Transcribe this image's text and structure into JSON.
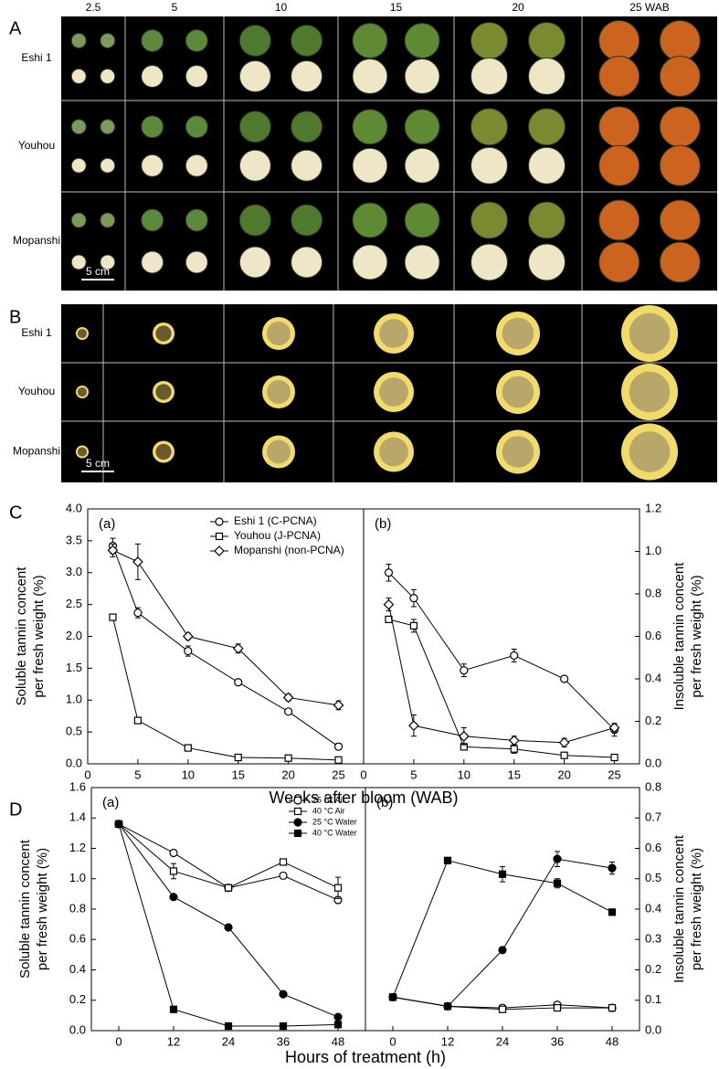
{
  "panel_labels": [
    "A",
    "B",
    "C",
    "D"
  ],
  "photos": {
    "columns": [
      "2.5",
      "5",
      "10",
      "15",
      "20",
      "25 WAB"
    ],
    "rows": [
      "Eshi 1",
      "Youhou",
      "Mopanshi"
    ],
    "scale_bar": "5 cm"
  },
  "chart_data": [
    {
      "type": "line",
      "label": "(a)",
      "xlabel": "Weeks after bloom (WAB)",
      "ylabel": [
        "Soluble tannin concent",
        "per fresh weight (%)"
      ],
      "y_axis": "left",
      "legend": "upper right",
      "x": [
        2.5,
        5,
        10,
        15,
        20,
        25
      ],
      "xlim": [
        0,
        27.5
      ],
      "xticks": [
        0,
        5,
        10,
        15,
        20,
        25
      ],
      "ylim": [
        0,
        4
      ],
      "yticks": [
        {
          "value": 0,
          "label": "0.0"
        },
        0.5,
        {
          "value": 1,
          "label": "1.0"
        },
        1.5,
        {
          "value": 2,
          "label": "2.0"
        },
        2.5,
        {
          "value": 3,
          "label": "3.0"
        },
        3.5,
        {
          "value": 4,
          "label": "4.0"
        }
      ],
      "series": [
        {
          "name": "Eshi 1 (C-PCNA)",
          "marker": "circle",
          "filled": false,
          "color": "#000000",
          "values": [
            3.42,
            2.37,
            1.77,
            1.28,
            0.82,
            0.27
          ],
          "errors": [
            0.12,
            0.08,
            0.08,
            0.03,
            0.03,
            0.05
          ]
        },
        {
          "name": "Youhou (J-PCNA)",
          "marker": "square",
          "filled": false,
          "color": "#000000",
          "values": [
            2.3,
            0.68,
            0.25,
            0.1,
            0.09,
            0.06
          ],
          "errors": [
            0.03,
            0.03,
            0.03,
            0.03,
            0.02,
            0.02
          ]
        },
        {
          "name": "Mopanshi (non-PCNA)",
          "marker": "diamond",
          "filled": false,
          "color": "#000000",
          "values": [
            3.35,
            3.17,
            2.0,
            1.81,
            1.04,
            0.92
          ],
          "errors": [
            0.1,
            0.28,
            0.05,
            0.07,
            0.05,
            0.07
          ]
        }
      ]
    },
    {
      "type": "line",
      "label": "(b)",
      "ylabel": [
        "Insoluble tannin concent",
        "per fresh weight (%)"
      ],
      "y_axis": "right",
      "x": [
        2.5,
        5,
        10,
        15,
        20,
        25
      ],
      "xlim": [
        0,
        27.5
      ],
      "xticks": [
        0,
        5,
        10,
        15,
        20,
        25
      ],
      "ylim": [
        0,
        1.2
      ],
      "yticks": [
        {
          "value": 0,
          "label": "0.0"
        },
        0.2,
        0.4,
        0.6,
        0.8,
        {
          "value": 1,
          "label": "1.0"
        },
        1.2
      ],
      "series": [
        {
          "marker": "circle",
          "filled": false,
          "color": "#000000",
          "values": [
            0.9,
            0.78,
            0.44,
            0.51,
            0.4,
            0.16
          ],
          "errors": [
            0.04,
            0.04,
            0.03,
            0.03,
            0.01,
            0.03
          ]
        },
        {
          "marker": "square",
          "filled": false,
          "color": "#000000",
          "values": [
            0.68,
            0.65,
            0.08,
            0.07,
            0.04,
            0.03
          ],
          "errors": [
            0.01,
            0.03,
            0.01,
            0.02,
            0.01,
            0.01
          ]
        },
        {
          "marker": "diamond",
          "filled": false,
          "color": "#000000",
          "values": [
            0.75,
            0.18,
            0.13,
            0.11,
            0.1,
            0.17
          ],
          "errors": [
            0.03,
            0.05,
            0.04,
            0.02,
            0.02,
            0.02
          ]
        }
      ]
    },
    {
      "type": "line",
      "label": "(a)",
      "xlabel": "Hours of treatment (h)",
      "ylabel": [
        "Soluble tannin concent",
        "per fresh weight (%)"
      ],
      "y_axis": "left",
      "legend": "upper right",
      "x": [
        0,
        12,
        24,
        36,
        48
      ],
      "xlim": [
        -6,
        54
      ],
      "xticks": [
        0,
        12,
        24,
        36,
        48
      ],
      "ylim": [
        0,
        1.6
      ],
      "yticks": [
        {
          "value": 0,
          "label": "0.0"
        },
        0.2,
        0.4,
        0.6,
        0.8,
        {
          "value": 1,
          "label": "1.0"
        },
        1.2,
        1.4,
        1.6
      ],
      "series": [
        {
          "name": "25 °C Air",
          "marker": "circle",
          "filled": false,
          "color": "#000000",
          "values": [
            1.36,
            1.17,
            0.94,
            1.02,
            0.86
          ],
          "errors": [
            0.01,
            0.01,
            0.01,
            0.02,
            0.02
          ]
        },
        {
          "name": "40 °C Air",
          "marker": "square",
          "filled": false,
          "color": "#000000",
          "values": [
            1.36,
            1.05,
            0.94,
            1.11,
            0.94
          ],
          "errors": [
            0.01,
            0.05,
            0.02,
            0.01,
            0.07
          ]
        },
        {
          "name": "25 °C Water",
          "marker": "circle",
          "filled": true,
          "color": "#000000",
          "values": [
            1.36,
            0.88,
            0.68,
            0.24,
            0.09
          ],
          "errors": [
            0.01,
            0.01,
            0.01,
            0.01,
            0.01
          ]
        },
        {
          "name": "40 °C Water",
          "marker": "square",
          "filled": true,
          "color": "#000000",
          "values": [
            1.36,
            0.14,
            0.03,
            0.03,
            0.04
          ],
          "errors": [
            0.01,
            0.01,
            0.01,
            0.01,
            0.01
          ]
        }
      ]
    },
    {
      "type": "line",
      "label": "(b)",
      "ylabel": [
        "Insoluble tannin concent",
        "per fresh weight (%)"
      ],
      "y_axis": "right",
      "x": [
        0,
        12,
        24,
        36,
        48
      ],
      "xlim": [
        -6,
        54
      ],
      "xticks": [
        0,
        12,
        24,
        36,
        48
      ],
      "ylim": [
        0,
        0.8
      ],
      "yticks": [
        {
          "value": 0,
          "label": "0.0"
        },
        0.1,
        0.2,
        0.3,
        0.4,
        0.5,
        0.6,
        0.7,
        0.8
      ],
      "series": [
        {
          "marker": "circle",
          "filled": false,
          "color": "#000000",
          "values": [
            0.11,
            0.08,
            0.075,
            0.085,
            0.075
          ],
          "errors": [
            0.005,
            0.005,
            0.005,
            0.005,
            0.005
          ]
        },
        {
          "marker": "square",
          "filled": false,
          "color": "#000000",
          "values": [
            0.11,
            0.08,
            0.07,
            0.075,
            0.075
          ],
          "errors": [
            0.005,
            0.005,
            0.005,
            0.005,
            0.005
          ]
        },
        {
          "marker": "circle",
          "filled": true,
          "color": "#000000",
          "values": [
            0.11,
            0.08,
            0.265,
            0.565,
            0.535
          ],
          "errors": [
            0.005,
            0.005,
            0.005,
            0.025,
            0.02
          ]
        },
        {
          "marker": "square",
          "filled": true,
          "color": "#000000",
          "values": [
            0.11,
            0.56,
            0.515,
            0.485,
            0.39
          ],
          "errors": [
            0.005,
            0.01,
            0.025,
            0.015,
            0.005
          ]
        }
      ]
    }
  ]
}
